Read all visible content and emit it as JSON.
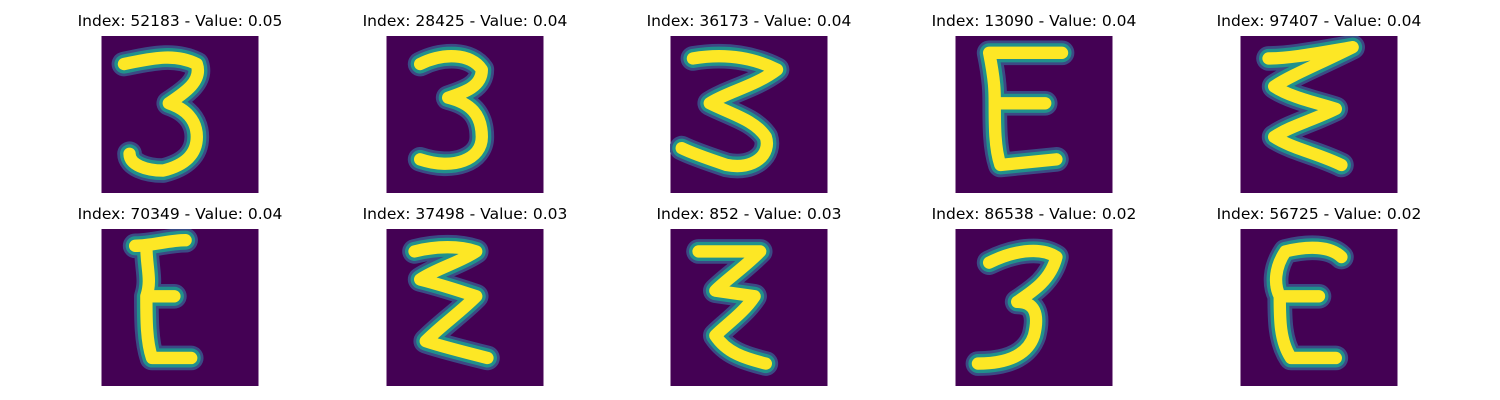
{
  "colors": {
    "background": "#440154",
    "mid": "#21918c",
    "high": "#fde725",
    "edge": "#3b528b"
  },
  "panels": [
    {
      "title": "Index: 52183 - Value: 0.05",
      "glyph": "3",
      "variant": "open-three"
    },
    {
      "title": "Index: 28425 - Value: 0.04",
      "glyph": "3",
      "variant": "bold-three"
    },
    {
      "title": "Index: 36173 - Value: 0.04",
      "glyph": "3",
      "variant": "zigzag"
    },
    {
      "title": "Index: 13090 - Value: 0.04",
      "glyph": "E",
      "variant": "e-upright"
    },
    {
      "title": "Index: 97407 - Value: 0.04",
      "glyph": "3",
      "variant": "wavy"
    },
    {
      "title": "Index: 70349 - Value: 0.04",
      "glyph": "E",
      "variant": "e-curvy"
    },
    {
      "title": "Index: 37498 - Value: 0.03",
      "glyph": "3",
      "variant": "zigzag-tight"
    },
    {
      "title": "Index: 852 - Value: 0.03",
      "glyph": "3",
      "variant": "z-shape"
    },
    {
      "title": "Index: 86538 - Value: 0.02",
      "glyph": "3",
      "variant": "hook-three"
    },
    {
      "title": "Index: 56725 - Value: 0.02",
      "glyph": "E",
      "variant": "e-round"
    }
  ]
}
